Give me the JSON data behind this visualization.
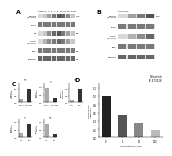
{
  "panel_A": {
    "label": "A",
    "header": "Time(h)  0  1  4  8  16 24 48  Post",
    "rows": [
      {
        "name": "p-PYK2\n(Tyr402)",
        "kda": "116",
        "intensities": [
          0.2,
          0.3,
          0.5,
          0.7,
          0.9,
          0.8,
          0.6,
          0.3
        ]
      },
      {
        "name": "PYK2",
        "kda": "",
        "intensities": [
          0.7,
          0.7,
          0.7,
          0.7,
          0.7,
          0.7,
          0.7,
          0.7
        ]
      },
      {
        "name": "pY",
        "kda": "95",
        "intensities": [
          0.2,
          0.3,
          0.6,
          0.8,
          0.9,
          0.7,
          0.5,
          0.3
        ]
      },
      {
        "name": "p-SRC\n(Tyr416)",
        "kda": "",
        "intensities": [
          0.2,
          0.4,
          0.6,
          0.7,
          0.8,
          0.7,
          0.5,
          0.3
        ]
      },
      {
        "name": "SRC",
        "kda": "60",
        "intensities": [
          0.7,
          0.7,
          0.7,
          0.7,
          0.7,
          0.7,
          0.7,
          0.7
        ]
      },
      {
        "name": "Tubulin",
        "kda": "46",
        "intensities": [
          0.8,
          0.8,
          0.8,
          0.8,
          0.8,
          0.8,
          0.8,
          0.8
        ]
      }
    ],
    "n_lanes": 8
  },
  "panel_B": {
    "label": "B",
    "header": "conditions",
    "rows": [
      {
        "name": "p-PYK2\n(Tyr402)",
        "kda": "116",
        "intensities": [
          0.2,
          0.5,
          0.7,
          0.9
        ]
      },
      {
        "name": "PYK2",
        "kda": "",
        "intensities": [
          0.7,
          0.7,
          0.7,
          0.7
        ]
      },
      {
        "name": "p-SRC\n(Tyr416)",
        "kda": "",
        "intensities": [
          0.2,
          0.4,
          0.6,
          0.8
        ]
      },
      {
        "name": "SRC",
        "kda": "",
        "intensities": [
          0.7,
          0.7,
          0.7,
          0.7
        ]
      },
      {
        "name": "Tubulin",
        "kda": "",
        "intensities": [
          0.8,
          0.8,
          0.8,
          0.8
        ]
      }
    ],
    "n_lanes": 4
  },
  "panel_C": {
    "label": "C",
    "subplots": [
      {
        "bars": [
          0.28,
          1.0
        ],
        "colors": [
          "#aaaaaa",
          "#333333"
        ],
        "ylabel": "p-PYK2/\nTotal PYK2",
        "xlabels": [
          "shCtrl",
          "shARPC2"
        ],
        "star": "**",
        "ylim": 1.4
      },
      {
        "bars": [
          0.9,
          0.25
        ],
        "colors": [
          "#aaaaaa",
          "#333333"
        ],
        "ylabel": "p-SRC/\nTotal SRC",
        "xlabels": [
          "shCtrl",
          "shARPC2"
        ],
        "star": "*",
        "ylim": 1.2
      },
      {
        "bars": [
          0.2,
          1.0
        ],
        "colors": [
          "#aaaaaa",
          "#333333"
        ],
        "ylabel": "p-PYK2/\nTotal PYK2",
        "xlabels": [
          "Ctrl",
          "EGF"
        ],
        "star": "**",
        "ylim": 1.4
      },
      {
        "bars": [
          0.3,
          0.85
        ],
        "colors": [
          "#aaaaaa",
          "#333333"
        ],
        "ylabel": "p-SRC/\nTotal SRC",
        "xlabels": [
          "Ctrl",
          "EGF"
        ],
        "star": "*",
        "ylim": 1.2
      },
      {
        "bars": [
          0.85,
          0.2
        ],
        "colors": [
          "#aaaaaa",
          "#333333"
        ],
        "ylabel": "Paxillin/\nTubulin",
        "xlabels": [
          "Ctrl",
          "KO"
        ],
        "star": "**",
        "ylim": 1.2
      }
    ]
  },
  "panel_D": {
    "label": "D",
    "bars": [
      1.0,
      0.55,
      0.35,
      0.18
    ],
    "colors": [
      "#222222",
      "#555555",
      "#888888",
      "#bbbbbb"
    ],
    "xlabel": "Concentration (uM)",
    "ylabel": "Relative cell\nmigration",
    "xlabels": [
      "0",
      "1",
      "10",
      "100"
    ],
    "title": "Defactinib\nPF-573228",
    "ylim": 1.3
  },
  "bg": "#ffffff"
}
